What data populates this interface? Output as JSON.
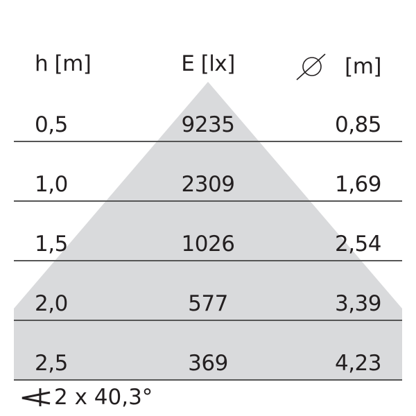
{
  "header": {
    "height_label": "h [m]",
    "illuminance_label": "E [lx]",
    "diameter_symbol": "diameter-icon",
    "diameter_unit": "[m]"
  },
  "rows": [
    {
      "h": "0,5",
      "e": "9235",
      "d": "0,85"
    },
    {
      "h": "1,0",
      "e": "2309",
      "d": "1,69"
    },
    {
      "h": "1,5",
      "e": "1026",
      "d": "2,54"
    },
    {
      "h": "2,0",
      "e": "577",
      "d": "3,39"
    },
    {
      "h": "2,5",
      "e": "369",
      "d": "4,23"
    }
  ],
  "footer": {
    "angle_icon": "angle-icon",
    "beam_angle": "2 x 40,3°"
  },
  "colors": {
    "cone": "#d9dadc",
    "line": "#555555",
    "text": "#231f20"
  }
}
